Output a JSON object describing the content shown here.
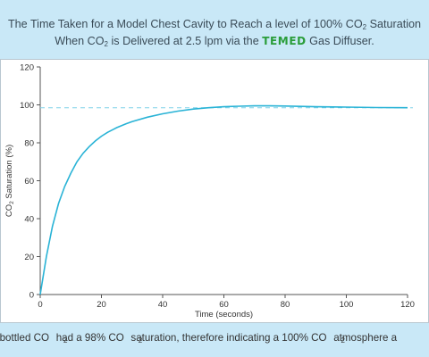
{
  "title": {
    "line1_pre": "The Time Taken for a Model Chest Cavity to Reach a level of 100% CO",
    "line1_sub": "2",
    "line1_post": " Saturation",
    "line2_pre": "When CO",
    "line2_sub": "2",
    "line2_mid": " is Delivered at 2.5 lpm via the ",
    "brand": "TEMED",
    "line2_post": " Gas Diffuser."
  },
  "footnote": {
    "p1": "ested bottled CO",
    "s1": "2",
    "p2": " had a 98% CO",
    "s2": "2",
    "p3": " saturation, therefore indicating a 100% CO",
    "s3": "2",
    "p4": " atmosphere a"
  },
  "colors": {
    "background": "#c9e8f7",
    "curve": "#29b3d6",
    "reference_line": "#7fd1e8",
    "brand": "#2a9d3a"
  },
  "chart_data": {
    "type": "line",
    "xlabel": "Time (seconds)",
    "ylabel_pre": "CO",
    "ylabel_sub": "2",
    "ylabel_post": " Saturation (%)",
    "xlim": [
      0,
      120
    ],
    "ylim": [
      0,
      120
    ],
    "xticks": [
      "0",
      "20",
      "40",
      "60",
      "80",
      "100",
      "120"
    ],
    "yticks": [
      "0",
      "20",
      "40",
      "60",
      "80",
      "100",
      "120"
    ],
    "grid": false,
    "reference_line": {
      "y": 98.5,
      "style": "dashed"
    },
    "series": [
      {
        "x": [
          0,
          2,
          4,
          6,
          8,
          10,
          12,
          14,
          16,
          18,
          20,
          22,
          25,
          28,
          30,
          35,
          40,
          45,
          50,
          55,
          60,
          65,
          70,
          75,
          80,
          85,
          90,
          100,
          110,
          120
        ],
        "values": [
          0,
          20,
          36,
          48,
          57,
          64,
          70,
          74.5,
          78,
          81,
          83.5,
          85.5,
          88,
          90,
          91.2,
          93.5,
          95.3,
          96.7,
          97.8,
          98.5,
          99,
          99.3,
          99.5,
          99.5,
          99.4,
          99.2,
          99,
          98.8,
          98.6,
          98.5
        ]
      }
    ]
  }
}
